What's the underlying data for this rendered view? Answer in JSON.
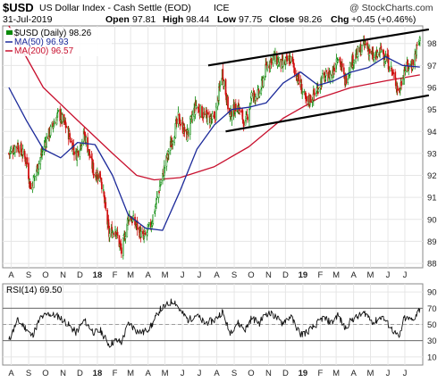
{
  "header": {
    "symbol": "$USD",
    "description": "US Dollar Index - Cash Settle (EOD)",
    "exchange": "ICE",
    "watermark": "@ StockCharts.com",
    "date": "31-Jul-2019",
    "open_label": "Open",
    "open": "97.81",
    "high_label": "High",
    "high": "98.44",
    "low_label": "Low",
    "low": "97.75",
    "close_label": "Close",
    "close": "98.26",
    "chg_label": "Chg",
    "chg": "+0.45 (+0.46%)"
  },
  "legend": {
    "price": "$USD (Daily) 98.26",
    "ma50": "MA(50) 96.93",
    "ma200": "MA(200) 96.57",
    "rsi": "RSI(14) 69.50"
  },
  "colors": {
    "up": "#0a8a0a",
    "down": "#d01010",
    "ma50": "#1c2a9a",
    "ma200": "#c8102e",
    "rsi": "#111111",
    "trend": "#000000",
    "grid": "#e6e6e6"
  },
  "chart_data": [
    {
      "type": "candlestick",
      "x": [
        "2017-07",
        "2017-08",
        "2017-09",
        "2017-10",
        "2017-11",
        "2017-12",
        "2018-01",
        "2018-02",
        "2018-03",
        "2018-04",
        "2018-05",
        "2018-06",
        "2018-07",
        "2018-08",
        "2018-09",
        "2018-10",
        "2018-11",
        "2018-12",
        "2019-01",
        "2019-02",
        "2019-03",
        "2019-04",
        "2019-05",
        "2019-06",
        "2019-07"
      ],
      "x_tick_labels": [
        "A",
        "S",
        "O",
        "N",
        "D",
        "18",
        "F",
        "M",
        "A",
        "M",
        "J",
        "J",
        "A",
        "S",
        "O",
        "N",
        "D",
        "19",
        "F",
        "M",
        "A",
        "M",
        "J",
        "J"
      ],
      "y_tick_labels": [
        "88",
        "89",
        "90",
        "91",
        "92",
        "93",
        "94",
        "95",
        "96",
        "97",
        "98"
      ],
      "ylim": [
        87.8,
        98.8
      ],
      "series": [
        {
          "name": "$USD (Daily)",
          "close_path": [
            [
              "2017-07-31",
              93.0
            ],
            [
              "2017-08-15",
              93.4
            ],
            [
              "2017-08-31",
              92.7
            ],
            [
              "2017-09-08",
              91.4
            ],
            [
              "2017-09-20",
              92.4
            ],
            [
              "2017-10-05",
              93.6
            ],
            [
              "2017-10-27",
              94.8
            ],
            [
              "2017-11-10",
              94.2
            ],
            [
              "2017-11-27",
              92.9
            ],
            [
              "2017-12-12",
              93.9
            ],
            [
              "2017-12-29",
              92.1
            ],
            [
              "2018-01-10",
              92.0
            ],
            [
              "2018-01-25",
              89.3
            ],
            [
              "2018-02-05",
              89.6
            ],
            [
              "2018-02-16",
              88.5
            ],
            [
              "2018-03-01",
              90.2
            ],
            [
              "2018-03-15",
              89.7
            ],
            [
              "2018-03-27",
              89.1
            ],
            [
              "2018-04-10",
              89.8
            ],
            [
              "2018-04-25",
              91.5
            ],
            [
              "2018-05-10",
              93.0
            ],
            [
              "2018-05-28",
              94.6
            ],
            [
              "2018-06-12",
              93.8
            ],
            [
              "2018-06-28",
              95.2
            ],
            [
              "2018-07-13",
              94.7
            ],
            [
              "2018-07-31",
              94.5
            ],
            [
              "2018-08-14",
              96.7
            ],
            [
              "2018-08-27",
              94.7
            ],
            [
              "2018-09-10",
              95.2
            ],
            [
              "2018-09-24",
              94.3
            ],
            [
              "2018-10-05",
              95.6
            ],
            [
              "2018-10-19",
              95.7
            ],
            [
              "2018-10-31",
              96.9
            ],
            [
              "2018-11-12",
              97.4
            ],
            [
              "2018-11-28",
              97.0
            ],
            [
              "2018-12-13",
              97.3
            ],
            [
              "2018-12-31",
              96.1
            ],
            [
              "2019-01-10",
              95.3
            ],
            [
              "2019-01-25",
              95.7
            ],
            [
              "2019-02-08",
              96.4
            ],
            [
              "2019-02-25",
              96.6
            ],
            [
              "2019-03-07",
              97.5
            ],
            [
              "2019-03-20",
              96.3
            ],
            [
              "2019-04-01",
              97.2
            ],
            [
              "2019-04-25",
              98.0
            ],
            [
              "2019-05-10",
              97.3
            ],
            [
              "2019-05-24",
              97.7
            ],
            [
              "2019-06-07",
              97.0
            ],
            [
              "2019-06-24",
              95.8
            ],
            [
              "2019-07-03",
              96.8
            ],
            [
              "2019-07-18",
              97.1
            ],
            [
              "2019-07-31",
              98.26
            ]
          ]
        },
        {
          "name": "MA(50)",
          "values": [
            [
              "2017-07-31",
              96.0
            ],
            [
              "2017-08-31",
              94.5
            ],
            [
              "2017-09-30",
              93.2
            ],
            [
              "2017-10-31",
              92.8
            ],
            [
              "2017-11-30",
              93.5
            ],
            [
              "2017-12-31",
              93.4
            ],
            [
              "2018-01-31",
              92.0
            ],
            [
              "2018-02-28",
              90.2
            ],
            [
              "2018-03-31",
              89.6
            ],
            [
              "2018-04-30",
              89.5
            ],
            [
              "2018-05-31",
              91.3
            ],
            [
              "2018-06-30",
              93.2
            ],
            [
              "2018-07-31",
              94.3
            ],
            [
              "2018-08-31",
              95.0
            ],
            [
              "2018-09-30",
              95.1
            ],
            [
              "2018-10-31",
              95.3
            ],
            [
              "2018-11-30",
              96.2
            ],
            [
              "2018-12-31",
              96.7
            ],
            [
              "2019-01-31",
              96.1
            ],
            [
              "2019-02-28",
              96.3
            ],
            [
              "2019-03-31",
              96.7
            ],
            [
              "2019-04-30",
              96.9
            ],
            [
              "2019-05-31",
              97.4
            ],
            [
              "2019-06-30",
              97.0
            ],
            [
              "2019-07-31",
              96.93
            ]
          ]
        },
        {
          "name": "MA(200)",
          "values": [
            [
              "2017-07-31",
              98.8
            ],
            [
              "2017-09-30",
              96.0
            ],
            [
              "2017-11-30",
              94.5
            ],
            [
              "2018-01-31",
              93.0
            ],
            [
              "2018-03-15",
              92.0
            ],
            [
              "2018-04-15",
              91.8
            ],
            [
              "2018-05-31",
              91.9
            ],
            [
              "2018-07-31",
              92.4
            ],
            [
              "2018-09-30",
              93.3
            ],
            [
              "2018-11-30",
              94.6
            ],
            [
              "2019-01-31",
              95.5
            ],
            [
              "2019-03-31",
              96.0
            ],
            [
              "2019-05-31",
              96.3
            ],
            [
              "2019-07-31",
              96.57
            ]
          ]
        }
      ],
      "trendlines": [
        {
          "from": [
            "2018-07-20",
            97.0
          ],
          "to": [
            "2019-07-31",
            98.6
          ]
        },
        {
          "from": [
            "2018-08-20",
            94.0
          ],
          "to": [
            "2019-07-31",
            95.6
          ]
        }
      ]
    },
    {
      "type": "line",
      "title": "RSI(14) 69.50",
      "y_tick_labels": [
        "10",
        "30",
        "50",
        "70",
        "90"
      ],
      "ylim": [
        0,
        100
      ],
      "reference_lines": [
        30,
        50,
        70
      ],
      "series": [
        {
          "name": "RSI(14)",
          "values": [
            [
              "2017-07-31",
              30
            ],
            [
              "2017-08-15",
              55
            ],
            [
              "2017-08-31",
              45
            ],
            [
              "2017-09-10",
              35
            ],
            [
              "2017-09-25",
              58
            ],
            [
              "2017-10-10",
              63
            ],
            [
              "2017-10-27",
              60
            ],
            [
              "2017-11-10",
              52
            ],
            [
              "2017-11-27",
              40
            ],
            [
              "2017-12-12",
              55
            ],
            [
              "2017-12-29",
              40
            ],
            [
              "2018-01-10",
              42
            ],
            [
              "2018-01-25",
              25
            ],
            [
              "2018-02-05",
              30
            ],
            [
              "2018-02-16",
              28
            ],
            [
              "2018-03-01",
              52
            ],
            [
              "2018-03-15",
              42
            ],
            [
              "2018-03-27",
              40
            ],
            [
              "2018-04-10",
              48
            ],
            [
              "2018-04-25",
              68
            ],
            [
              "2018-05-10",
              75
            ],
            [
              "2018-05-20",
              80
            ],
            [
              "2018-06-01",
              66
            ],
            [
              "2018-06-15",
              55
            ],
            [
              "2018-06-28",
              62
            ],
            [
              "2018-07-13",
              52
            ],
            [
              "2018-07-31",
              55
            ],
            [
              "2018-08-14",
              66
            ],
            [
              "2018-08-27",
              40
            ],
            [
              "2018-09-10",
              52
            ],
            [
              "2018-09-24",
              44
            ],
            [
              "2018-10-05",
              58
            ],
            [
              "2018-10-19",
              52
            ],
            [
              "2018-10-31",
              64
            ],
            [
              "2018-11-12",
              62
            ],
            [
              "2018-11-28",
              52
            ],
            [
              "2018-12-13",
              60
            ],
            [
              "2018-12-31",
              38
            ],
            [
              "2019-01-10",
              40
            ],
            [
              "2019-01-25",
              48
            ],
            [
              "2019-02-08",
              58
            ],
            [
              "2019-02-25",
              52
            ],
            [
              "2019-03-07",
              62
            ],
            [
              "2019-03-20",
              45
            ],
            [
              "2019-04-01",
              56
            ],
            [
              "2019-04-25",
              64
            ],
            [
              "2019-05-10",
              52
            ],
            [
              "2019-05-24",
              60
            ],
            [
              "2019-06-07",
              48
            ],
            [
              "2019-06-24",
              33
            ],
            [
              "2019-07-03",
              58
            ],
            [
              "2019-07-18",
              55
            ],
            [
              "2019-07-31",
              69.5
            ]
          ]
        }
      ]
    }
  ]
}
